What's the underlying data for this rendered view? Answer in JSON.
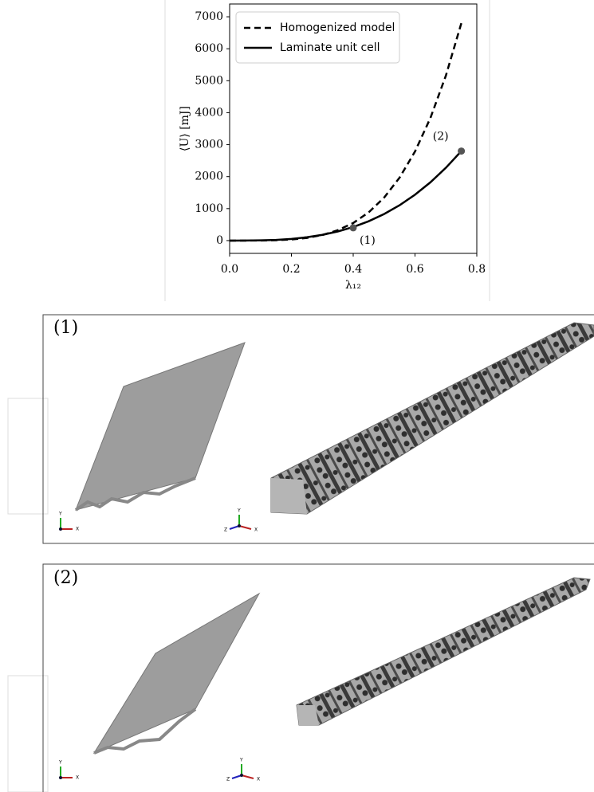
{
  "chart_data": {
    "type": "line",
    "xlabel": "λ₁₂",
    "ylabel": "⟨U⟩ [mJ]",
    "x": [
      0,
      0.05,
      0.1,
      0.15,
      0.2,
      0.25,
      0.3,
      0.35,
      0.4,
      0.45,
      0.5,
      0.55,
      0.6,
      0.65,
      0.7,
      0.75
    ],
    "series": [
      {
        "name": "Homogenized model",
        "color": "#000000",
        "dash": true,
        "values": [
          0,
          0.1,
          2,
          11,
          34,
          84,
          174,
          323,
          550,
          882,
          1344,
          1968,
          2786,
          3838,
          5162,
          6800
        ]
      },
      {
        "name": "Laminate unit cell",
        "color": "#000000",
        "dash": false,
        "values": [
          0,
          1,
          7,
          22,
          53,
          104,
          179,
          285,
          425,
          605,
          830,
          1105,
          1434,
          1824,
          2278,
          2800
        ]
      }
    ],
    "highlights": [
      {
        "x": 0.4,
        "y": 400,
        "label": "(1)"
      },
      {
        "x": 0.75,
        "y": 2800,
        "label": "(2)"
      }
    ],
    "marker_color": "#555555",
    "xlim": [
      0,
      0.8
    ],
    "xticks": [
      {
        "value": 0,
        "label": "0.0"
      },
      0.2,
      0.4,
      0.6,
      0.8
    ],
    "ylim": [
      -400,
      7400
    ],
    "yticks": [
      0,
      1000,
      2000,
      3000,
      4000,
      5000,
      6000,
      7000
    ],
    "legend": "upper left",
    "grid": false
  },
  "panels": [
    {
      "label": "(1)"
    },
    {
      "label": "(2)"
    }
  ],
  "triad": {
    "x": "X",
    "y": "Y",
    "z": "Z"
  }
}
